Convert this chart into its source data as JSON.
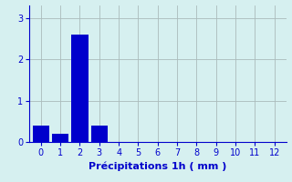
{
  "categories": [
    0,
    1,
    2,
    3,
    4,
    5,
    6,
    7,
    8,
    9,
    10,
    11,
    12
  ],
  "values": [
    0.4,
    0.2,
    2.6,
    0.4,
    0,
    0,
    0,
    0,
    0,
    0,
    0,
    0,
    0
  ],
  "bar_color": "#0000CC",
  "background_color": "#D6F0F0",
  "xlabel": "Précipitations 1h ( mm )",
  "ylim": [
    0,
    3.3
  ],
  "xlim": [
    -0.6,
    12.6
  ],
  "yticks": [
    0,
    1,
    2,
    3
  ],
  "xticks": [
    0,
    1,
    2,
    3,
    4,
    5,
    6,
    7,
    8,
    9,
    10,
    11,
    12
  ],
  "grid_color": "#AABBBB",
  "text_color": "#0000CC",
  "xlabel_fontsize": 8,
  "tick_fontsize": 7,
  "bar_width": 0.85
}
